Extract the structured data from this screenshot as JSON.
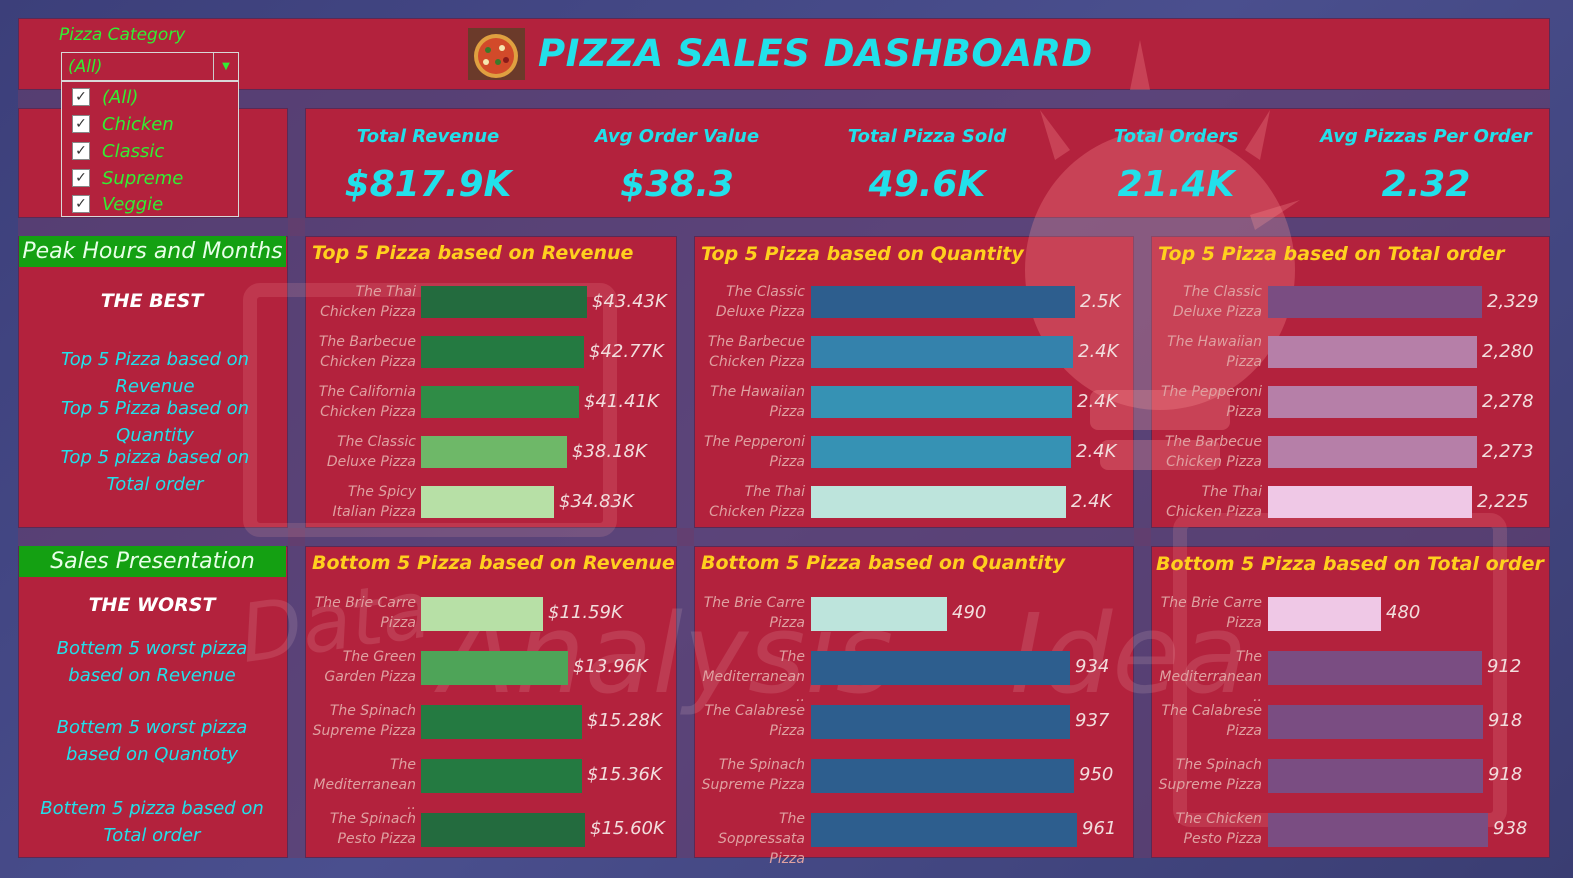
{
  "header": {
    "title": "PIZZA SALES DASHBOARD",
    "filter": {
      "label": "Pizza Category",
      "selected": "(All)",
      "options": [
        "(All)",
        "Chicken",
        "Classic",
        "Supreme",
        "Veggie"
      ]
    }
  },
  "kpis": [
    {
      "label": "Total Revenue",
      "value": "$817.9K"
    },
    {
      "label": "Avg Order Value",
      "value": "$38.3"
    },
    {
      "label": "Total Pizza Sold",
      "value": "49.6K"
    },
    {
      "label": "Total Orders",
      "value": "21.4K"
    },
    {
      "label": "Avg Pizzas Per Order",
      "value": "2.32"
    }
  ],
  "sidebar": {
    "peak_title": "Peak Hours and Months",
    "best_label": "THE BEST",
    "best_links": [
      "Top 5 Pizza based on  Revenue",
      "Top 5 Pizza based on Quantity",
      "Top 5 pizza based on Total order"
    ],
    "sales_title": "Sales Presentation",
    "worst_label": "THE  WORST",
    "worst_links": [
      "Bottem 5 worst pizza based on Revenue",
      "Bottem 5 worst pizza based on Quantoty",
      "Bottem 5 pizza based on Total order"
    ]
  },
  "chart_data": [
    {
      "type": "bar",
      "title": "Top 5 Pizza based on Revenue",
      "categories": [
        "The Thai Chicken Pizza",
        "The Barbecue Chicken Pizza",
        "The California Chicken Pizza",
        "The Classic Deluxe Pizza",
        "The Spicy Italian Pizza"
      ],
      "values": [
        43430,
        42770,
        41410,
        38180,
        34830
      ],
      "labels": [
        "$43.43K",
        "$42.77K",
        "$41.41K",
        "$38.18K",
        "$34.83K"
      ],
      "colors": [
        "#236b3e",
        "#247a41",
        "#2f8c46",
        "#6eb868",
        "#b7e0a6"
      ]
    },
    {
      "type": "bar",
      "title": "Top 5 Pizza based on Quantity",
      "categories": [
        "The Classic Deluxe Pizza",
        "The Barbecue Chicken Pizza",
        "The Hawaiian Pizza",
        "The Pepperoni Pizza",
        "The Thai Chicken Pizza"
      ],
      "values": [
        2453,
        2432,
        2422,
        2418,
        2371
      ],
      "labels": [
        "2.5K",
        "2.4K",
        "2.4K",
        "2.4K",
        "2.4K"
      ],
      "colors": [
        "#2d5e8e",
        "#3482ac",
        "#3692b4",
        "#3692b4",
        "#bde4dc"
      ]
    },
    {
      "type": "bar",
      "title": "Top 5 Pizza based on Total order",
      "categories": [
        "The Classic Deluxe Pizza",
        "The Hawaiian Pizza",
        "The Pepperoni Pizza",
        "The Barbecue Chicken Pizza",
        "The Thai Chicken Pizza"
      ],
      "values": [
        2329,
        2280,
        2278,
        2273,
        2225
      ],
      "labels": [
        "2,329",
        "2,280",
        "2,278",
        "2,273",
        "2,225"
      ],
      "colors": [
        "#7a4d82",
        "#b67fa8",
        "#b67fa8",
        "#b67fa8",
        "#efc8e6"
      ]
    },
    {
      "type": "bar",
      "title": "Bottom 5 Pizza based on Revenue",
      "categories": [
        "The Brie Carre Pizza",
        "The Green Garden Pizza",
        "The Spinach Supreme Pizza",
        "The Mediterranean ..",
        "The Spinach Pesto Pizza"
      ],
      "values": [
        11590,
        13960,
        15280,
        15360,
        15600
      ],
      "labels": [
        "$11.59K",
        "$13.96K",
        "$15.28K",
        "$15.36K",
        "$15.60K"
      ],
      "colors": [
        "#b7e0a6",
        "#4ea458",
        "#247a41",
        "#247a41",
        "#236b3e"
      ]
    },
    {
      "type": "bar",
      "title": "Bottom 5 Pizza based on Quantity",
      "categories": [
        "The Brie Carre Pizza",
        "The Mediterranean ..",
        "The Calabrese Pizza",
        "The Spinach Supreme Pizza",
        "The Soppressata Pizza"
      ],
      "values": [
        490,
        934,
        937,
        950,
        961
      ],
      "labels": [
        "490",
        "934",
        "937",
        "950",
        "961"
      ],
      "colors": [
        "#bde4dc",
        "#2d5e8e",
        "#2d5e8e",
        "#2d5e8e",
        "#2d5e8e"
      ]
    },
    {
      "type": "bar",
      "title": "Bottom 5 Pizza based on Total order",
      "categories": [
        "The Brie Carre Pizza",
        "The Mediterranean ..",
        "The Calabrese Pizza",
        "The Spinach Supreme Pizza",
        "The Chicken Pesto Pizza"
      ],
      "values": [
        480,
        912,
        918,
        918,
        938
      ],
      "labels": [
        "480",
        "912",
        "918",
        "918",
        "938"
      ],
      "colors": [
        "#efc8e6",
        "#7a4d82",
        "#7a4d82",
        "#7a4d82",
        "#7a4d82"
      ]
    }
  ]
}
